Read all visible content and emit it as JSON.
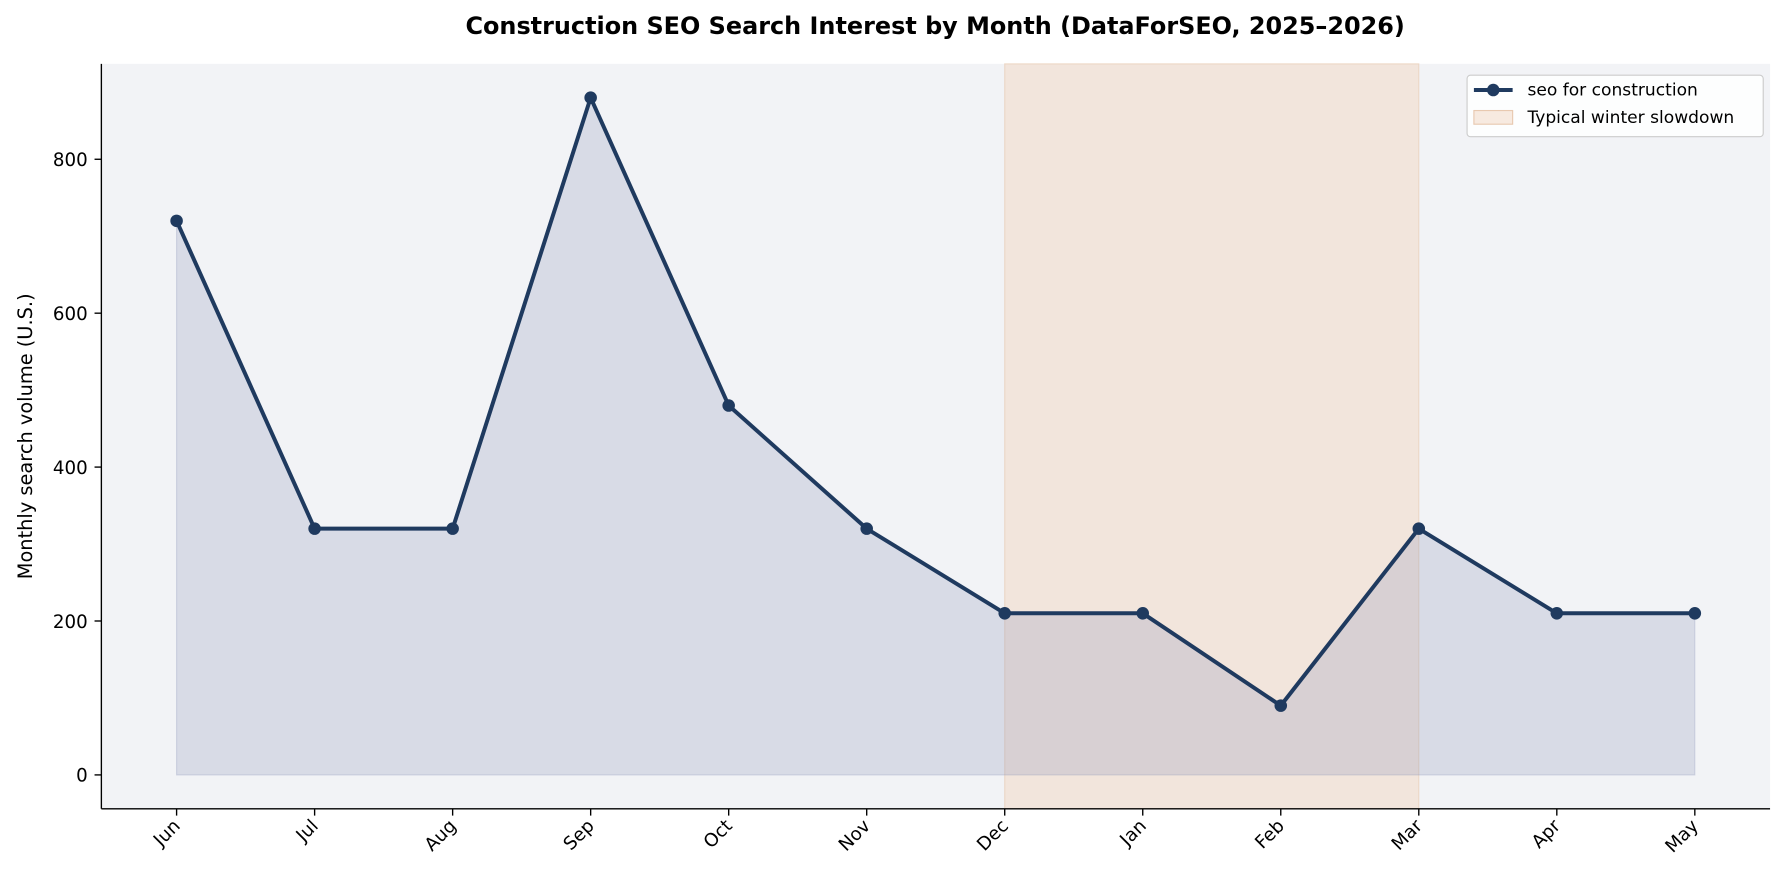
{
  "chart_data": {
    "type": "line",
    "title": "Construction SEO Search Interest by Month (DataForSEO, 2025–2026)",
    "ylabel": "Monthly search volume (U.S.)",
    "categories": [
      "Jun",
      "Jul",
      "Aug",
      "Sep",
      "Oct",
      "Nov",
      "Dec",
      "Jan",
      "Feb",
      "Mar",
      "Apr",
      "May"
    ],
    "series": [
      {
        "name": "seo for construction",
        "color": "#1f3a5f",
        "values": [
          720,
          320,
          320,
          880,
          480,
          320,
          210,
          210,
          90,
          320,
          210,
          210
        ]
      }
    ],
    "area_fill": true,
    "shaded_span": {
      "from": "Dec",
      "to": "Mar",
      "label": "Typical winter slowdown",
      "color": "#f3d9c6"
    },
    "ylim": [
      -44,
      924
    ],
    "yticks": [
      0,
      200,
      400,
      600,
      800
    ],
    "grid": false,
    "legend": "upper right"
  }
}
